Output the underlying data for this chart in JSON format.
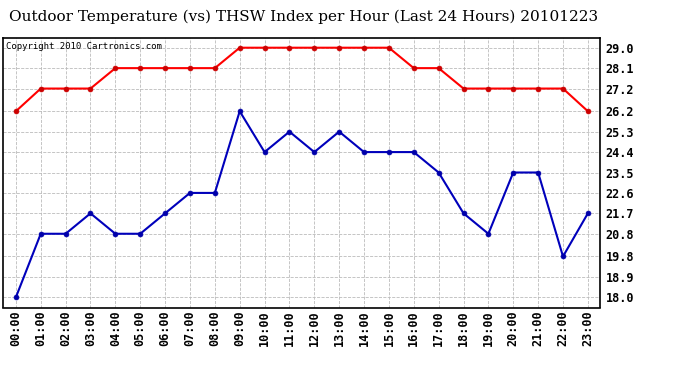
{
  "title": "Outdoor Temperature (vs) THSW Index per Hour (Last 24 Hours) 20101223",
  "copyright": "Copyright 2010 Cartronics.com",
  "x_labels": [
    "00:00",
    "01:00",
    "02:00",
    "03:00",
    "04:00",
    "05:00",
    "06:00",
    "07:00",
    "08:00",
    "09:00",
    "10:00",
    "11:00",
    "12:00",
    "13:00",
    "14:00",
    "15:00",
    "16:00",
    "17:00",
    "18:00",
    "19:00",
    "20:00",
    "21:00",
    "22:00",
    "23:00"
  ],
  "red_data": [
    26.2,
    27.2,
    27.2,
    27.2,
    28.1,
    28.1,
    28.1,
    28.1,
    28.1,
    29.0,
    29.0,
    29.0,
    29.0,
    29.0,
    29.0,
    29.0,
    28.1,
    28.1,
    27.2,
    27.2,
    27.2,
    27.2,
    27.2,
    26.2
  ],
  "blue_data": [
    18.0,
    20.8,
    20.8,
    21.7,
    20.8,
    20.8,
    21.7,
    22.6,
    22.6,
    26.2,
    24.4,
    25.3,
    24.4,
    25.3,
    24.4,
    24.4,
    24.4,
    23.5,
    21.7,
    20.8,
    23.5,
    23.5,
    19.8,
    21.7
  ],
  "ylim_min": 17.55,
  "ylim_max": 29.45,
  "yticks": [
    18.0,
    18.9,
    19.8,
    20.8,
    21.7,
    22.6,
    23.5,
    24.4,
    25.3,
    26.2,
    27.2,
    28.1,
    29.0
  ],
  "red_color": "#ff0000",
  "blue_color": "#0000bb",
  "marker_color_red": "#cc0000",
  "marker_color_blue": "#0000aa",
  "bg_color": "#ffffff",
  "grid_color": "#bbbbbb",
  "title_fontsize": 11,
  "copyright_fontsize": 6.5,
  "tick_fontsize": 8.5
}
